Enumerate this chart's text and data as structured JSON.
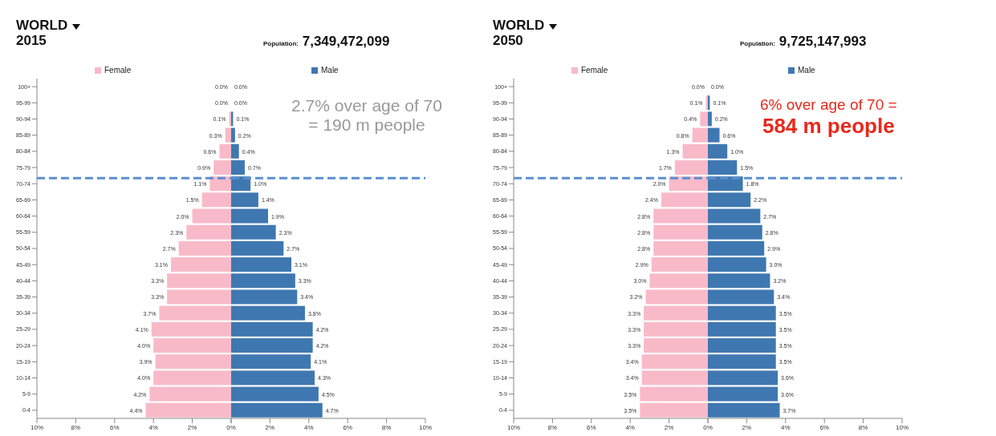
{
  "chart_data": [
    {
      "type": "bar",
      "orientation": "horizontal",
      "title": "WORLD",
      "subtitle": "2015",
      "categories": [
        "100+",
        "95-99",
        "90-94",
        "85-89",
        "80-84",
        "75-79",
        "70-74",
        "65-69",
        "60-64",
        "55-59",
        "50-54",
        "45-49",
        "40-44",
        "35-39",
        "30-34",
        "25-29",
        "20-24",
        "15-19",
        "10-14",
        "5-9",
        "0-4"
      ],
      "series": [
        {
          "name": "Female",
          "color": "#f8bac9",
          "values": [
            0.0,
            0.0,
            0.1,
            0.3,
            0.6,
            0.9,
            1.1,
            1.5,
            2.0,
            2.3,
            2.7,
            3.1,
            3.3,
            3.3,
            3.7,
            4.1,
            4.0,
            3.9,
            4.0,
            4.2,
            4.4
          ],
          "value_labels": [
            "0.0%",
            "0.0%",
            "0.1%",
            "0.3%",
            "0.6%",
            "0.9%",
            "1.1%",
            "1.5%",
            "2.0%",
            "2.3%",
            "2.7%",
            "3.1%",
            "3.3%",
            "3.3%",
            "3.7%",
            "4.1%",
            "4.0%",
            "3.9%",
            "4.0%",
            "4.2%",
            "4.4%"
          ]
        }
      ],
      "xlim": [
        10,
        0
      ],
      "xticks": [
        {
          "value": 10,
          "label": "10%"
        },
        {
          "value": 8,
          "label": "8%"
        },
        {
          "value": 6,
          "label": "6%"
        },
        {
          "value": 4,
          "label": "4%"
        },
        {
          "value": 2,
          "label": "2%"
        },
        {
          "value": 0,
          "label": "0%"
        }
      ],
      "ref_lines": [
        {
          "axis": "y",
          "value": "70-74",
          "color": "#5b8fd0",
          "line_style": "dashed"
        }
      ],
      "legend": "top"
    },
    {
      "type": "bar",
      "orientation": "horizontal",
      "categories": [
        "100+",
        "95-99",
        "90-94",
        "85-89",
        "80-84",
        "75-79",
        "70-74",
        "65-69",
        "60-64",
        "55-59",
        "50-54",
        "45-49",
        "40-44",
        "35-39",
        "30-34",
        "25-29",
        "20-24",
        "15-19",
        "10-14",
        "5-9",
        "0-4"
      ],
      "series": [
        {
          "name": "Male",
          "color": "#3f78b1",
          "values": [
            0.0,
            0.0,
            0.1,
            0.2,
            0.4,
            0.7,
            1.0,
            1.4,
            1.9,
            2.3,
            2.7,
            3.1,
            3.3,
            3.4,
            3.8,
            4.2,
            4.2,
            4.1,
            4.3,
            4.5,
            4.7
          ],
          "value_labels": [
            "0.0%",
            "0.0%",
            "0.1%",
            "0.2%",
            "0.4%",
            "0.7%",
            "1.0%",
            "1.4%",
            "1.9%",
            "2.3%",
            "2.7%",
            "3.1%",
            "3.3%",
            "3.4%",
            "3.8%",
            "4.2%",
            "4.2%",
            "4.1%",
            "4.3%",
            "4.5%",
            "4.7%"
          ]
        }
      ],
      "xlim": [
        0,
        10
      ],
      "xticks": [
        {
          "value": 0,
          "label": null
        },
        {
          "value": 2,
          "label": "2%"
        },
        {
          "value": 4,
          "label": "4%"
        },
        {
          "value": 6,
          "label": "6%"
        },
        {
          "value": 8,
          "label": "8%"
        },
        {
          "value": 10,
          "label": "10%"
        }
      ],
      "tick_labels": "x",
      "ref_lines": [
        {
          "axis": "y",
          "value": "70-74",
          "color": "#5b8fd0",
          "line_style": "dashed"
        }
      ],
      "annotations": [
        "Population: 7,349,472,099",
        "2.7% over age of 70",
        "= 190 m people"
      ],
      "legend": "top"
    },
    {
      "type": "bar",
      "orientation": "horizontal",
      "title": "WORLD",
      "subtitle": "2050",
      "categories": [
        "100+",
        "95-99",
        "90-94",
        "85-89",
        "80-84",
        "75-79",
        "70-74",
        "65-69",
        "60-64",
        "55-59",
        "50-54",
        "45-49",
        "40-44",
        "35-39",
        "30-34",
        "25-29",
        "20-24",
        "15-19",
        "10-14",
        "5-9",
        "0-4"
      ],
      "series": [
        {
          "name": "Female",
          "color": "#f8bac9",
          "values": [
            0.0,
            0.1,
            0.4,
            0.8,
            1.3,
            1.7,
            2.0,
            2.4,
            2.8,
            2.8,
            2.8,
            2.9,
            3.0,
            3.2,
            3.3,
            3.3,
            3.3,
            3.4,
            3.4,
            3.5,
            3.5
          ],
          "value_labels": [
            "0.0%",
            "0.1%",
            "0.4%",
            "0.8%",
            "1.3%",
            "1.7%",
            "2.0%",
            "2.4%",
            "2.8%",
            "2.8%",
            "2.8%",
            "2.9%",
            "3.0%",
            "3.2%",
            "3.3%",
            "3.3%",
            "3.3%",
            "3.4%",
            "3.4%",
            "3.5%",
            "3.5%"
          ]
        }
      ],
      "xlim": [
        10,
        0
      ],
      "xticks": [
        {
          "value": 10,
          "label": "10%"
        },
        {
          "value": 8,
          "label": "8%"
        },
        {
          "value": 6,
          "label": "6%"
        },
        {
          "value": 4,
          "label": "4%"
        },
        {
          "value": 2,
          "label": "2%"
        },
        {
          "value": 0,
          "label": "0%"
        }
      ],
      "ref_lines": [
        {
          "axis": "y",
          "value": "70-74",
          "color": "#5b8fd0",
          "line_style": "dashed"
        }
      ],
      "legend": "top"
    },
    {
      "type": "bar",
      "orientation": "horizontal",
      "categories": [
        "100+",
        "95-99",
        "90-94",
        "85-89",
        "80-84",
        "75-79",
        "70-74",
        "65-69",
        "60-64",
        "55-59",
        "50-54",
        "45-49",
        "40-44",
        "35-39",
        "30-34",
        "25-29",
        "20-24",
        "15-19",
        "10-14",
        "5-9",
        "0-4"
      ],
      "series": [
        {
          "name": "Male",
          "color": "#3f78b1",
          "values": [
            0.0,
            0.1,
            0.2,
            0.6,
            1.0,
            1.5,
            1.8,
            2.2,
            2.7,
            2.8,
            2.9,
            3.0,
            3.2,
            3.4,
            3.5,
            3.5,
            3.5,
            3.5,
            3.6,
            3.6,
            3.7
          ],
          "value_labels": [
            "0.0%",
            "0.1%",
            "0.2%",
            "0.6%",
            "1.0%",
            "1.5%",
            "1.8%",
            "2.2%",
            "2.7%",
            "2.8%",
            "2.9%",
            "3.0%",
            "3.2%",
            "3.4%",
            "3.5%",
            "3.5%",
            "3.5%",
            "3.5%",
            "3.6%",
            "3.6%",
            "3.7%"
          ]
        }
      ],
      "xlim": [
        0,
        10
      ],
      "xticks": [
        {
          "value": 0,
          "label": null
        },
        {
          "value": 2,
          "label": "2%"
        },
        {
          "value": 4,
          "label": "4%"
        },
        {
          "value": 6,
          "label": "6%"
        },
        {
          "value": 8,
          "label": "8%"
        },
        {
          "value": 10,
          "label": "10%"
        }
      ],
      "tick_labels": "x",
      "ref_lines": [
        {
          "axis": "y",
          "value": "70-74",
          "color": "#5b8fd0",
          "line_style": "dashed"
        }
      ],
      "annotations": [
        "Population: 9,725,147,993",
        "6% over age of 70  =",
        "584 m people"
      ],
      "legend": "top"
    }
  ]
}
